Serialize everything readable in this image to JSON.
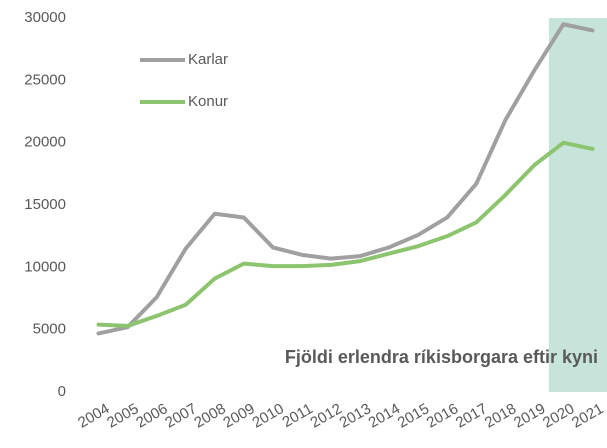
{
  "chart_data": {
    "type": "line",
    "title": "Fjöldi erlendra ríkisborgara eftir kyni",
    "categories": [
      "2004",
      "2005",
      "2006",
      "2007",
      "2008",
      "2009",
      "2010",
      "2011",
      "2012",
      "2013",
      "2014",
      "2015",
      "2016",
      "2017",
      "2018",
      "2019",
      "2020",
      "2021"
    ],
    "series": [
      {
        "name": "Karlar",
        "color": "#a0a0a0",
        "values": [
          4700,
          5200,
          7600,
          11500,
          14300,
          14000,
          11600,
          11000,
          10700,
          10900,
          11600,
          12600,
          14000,
          16700,
          21800,
          25800,
          29500,
          29000
        ]
      },
      {
        "name": "Konur",
        "color": "#8cc56e",
        "values": [
          5400,
          5300,
          6100,
          7000,
          9100,
          10300,
          10100,
          10100,
          10200,
          10500,
          11100,
          11700,
          12500,
          13600,
          15800,
          18200,
          20000,
          19500
        ]
      }
    ],
    "ylim": [
      0,
      30000
    ],
    "yticks": [
      0,
      5000,
      10000,
      15000,
      20000,
      25000,
      30000
    ],
    "grid": false
  }
}
